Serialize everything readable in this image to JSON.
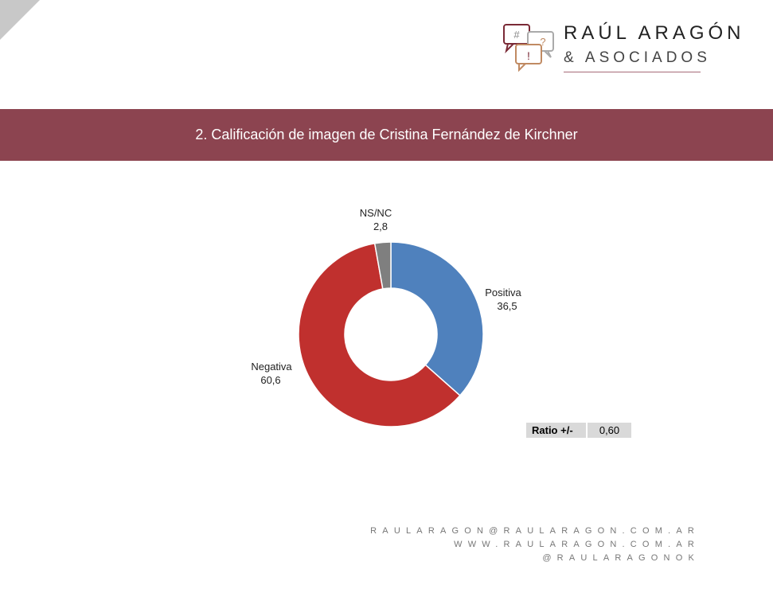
{
  "header": {
    "title": "2. Calificación de imagen de Cristina Fernández de Kirchner"
  },
  "logo": {
    "line1": "RAÚL ARAGÓN",
    "line2": "& ASOCIADOS",
    "icons": [
      "#",
      "?",
      "!"
    ]
  },
  "chart_data": {
    "type": "donut",
    "title": "2. Calificación de imagen de Cristina Fernández de Kirchner",
    "slices": [
      {
        "label": "Positiva",
        "value": 36.5,
        "display": "36,5",
        "color": "#4f81bd"
      },
      {
        "label": "Negativa",
        "value": 60.6,
        "display": "60,6",
        "color": "#c0302e"
      },
      {
        "label": "NS/NC",
        "value": 2.8,
        "display": "2,8",
        "color": "#7f7f7f"
      }
    ]
  },
  "ratio": {
    "label": "Ratio +/-",
    "value": "0,60"
  },
  "footer": {
    "email": "RAULARAGON@RAULARAGON.COM.AR",
    "web": "WWW.RAULARAGON.COM.AR",
    "social": "@RAULARAGONOK"
  }
}
